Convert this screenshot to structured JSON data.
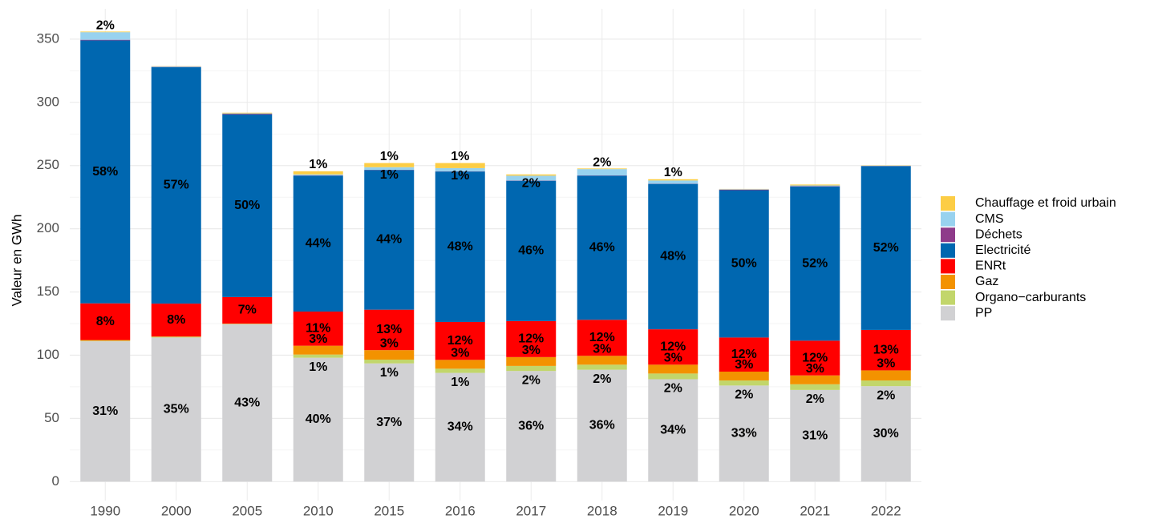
{
  "chart_data": {
    "type": "stacked_bar",
    "y_label": "Valeur en GWh",
    "categories": [
      "1990",
      "2000",
      "2005",
      "2010",
      "2015",
      "2016",
      "2017",
      "2018",
      "2019",
      "2020",
      "2021",
      "2022"
    ],
    "series": [
      {
        "name": "PP",
        "color": "#d1d1d3",
        "values": [
          111,
          114,
          124.5,
          98,
          93.5,
          86,
          87.5,
          88.5,
          81,
          76,
          72.5,
          75.5
        ],
        "labels": [
          "31%",
          "35%",
          "43%",
          "40%",
          "37%",
          "34%",
          "36%",
          "36%",
          "34%",
          "33%",
          "31%",
          "30%"
        ]
      },
      {
        "name": "Organo−carburants",
        "color": "#c2d66b",
        "values": [
          0.5,
          0.5,
          0.3,
          2.5,
          3,
          3.3,
          4,
          4,
          4.5,
          4,
          4.5,
          4.5
        ],
        "labels": [
          null,
          null,
          null,
          "1%",
          "1%",
          "1%",
          "2%",
          "2%",
          "2%",
          "2%",
          "2%",
          "2%"
        ]
      },
      {
        "name": "Gaz",
        "color": "#f39200",
        "values": [
          0.5,
          0.3,
          0.2,
          7,
          7.5,
          7,
          7,
          7,
          7,
          7,
          7,
          8
        ],
        "labels": [
          null,
          null,
          null,
          "3%",
          "3%",
          "3%",
          "3%",
          "3%",
          "3%",
          "3%",
          "3%",
          "3%"
        ]
      },
      {
        "name": "ENRt",
        "color": "#ff0000",
        "values": [
          29,
          26,
          21,
          27,
          32,
          30,
          28.5,
          28.5,
          28,
          27,
          27.5,
          32
        ],
        "labels": [
          "8%",
          "8%",
          "7%",
          "11%",
          "13%",
          "12%",
          "12%",
          "12%",
          "12%",
          "12%",
          "12%",
          "13%"
        ]
      },
      {
        "name": "Electricité",
        "color": "#0067b0",
        "values": [
          208,
          187,
          144.5,
          107.5,
          110.5,
          119,
          111,
          114,
          115,
          116.5,
          122,
          129.5
        ],
        "labels": [
          "58%",
          "57%",
          "50%",
          "44%",
          "44%",
          "48%",
          "46%",
          "46%",
          "48%",
          "50%",
          "52%",
          "52%"
        ]
      },
      {
        "name": "Déchets",
        "color": "#8e3b8a",
        "values": [
          0.5,
          0.2,
          0.5,
          0.2,
          0.2,
          0.2,
          0.2,
          0.2,
          0.2,
          0.5,
          0.3,
          0.2
        ],
        "labels": [
          null,
          null,
          null,
          null,
          null,
          null,
          null,
          null,
          null,
          null,
          null,
          null
        ]
      },
      {
        "name": "CMS",
        "color": "#98d2ef",
        "values": [
          6,
          0.5,
          0.3,
          0.8,
          2,
          2.5,
          3.8,
          5,
          2.5,
          0.3,
          0.5,
          0.2
        ],
        "labels": [
          "2%",
          null,
          null,
          null,
          "1%",
          "1%",
          "2%",
          "2%",
          null,
          null,
          null,
          null
        ]
      },
      {
        "name": "Chauffage et froid urbain",
        "color": "#fccd45",
        "values": [
          0.5,
          0.2,
          0.5,
          2.5,
          3.3,
          4,
          1,
          0.5,
          1,
          0.2,
          0.7,
          0.2
        ],
        "labels": [
          null,
          null,
          null,
          "1%",
          "1%",
          "1%",
          null,
          null,
          "1%",
          null,
          null,
          null
        ]
      }
    ],
    "ylim": [
      -15,
      374
    ],
    "yticks": [
      0,
      50,
      100,
      150,
      200,
      250,
      300,
      350
    ],
    "grid": true
  }
}
